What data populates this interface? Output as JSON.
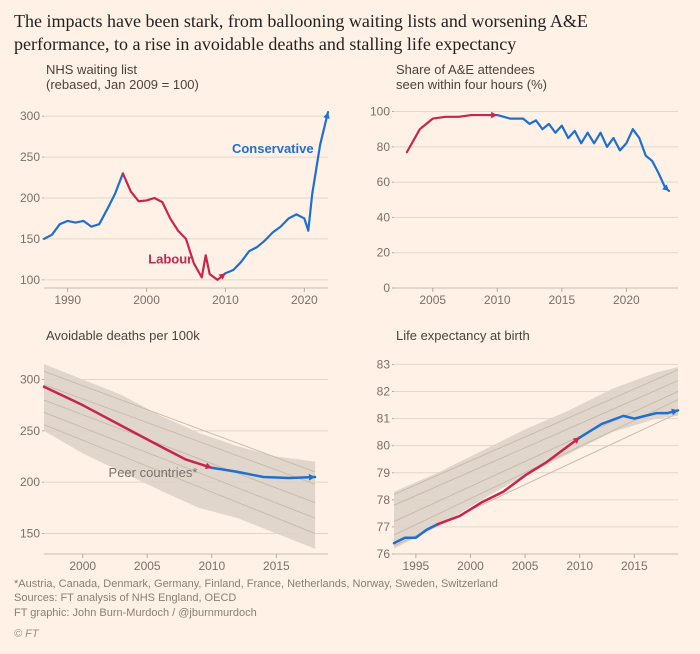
{
  "title": "The impacts have been stark, from ballooning waiting lists and worsening A&E performance, to a rise in avoidable deaths and stalling life expectancy",
  "palette": {
    "background": "#fff1e5",
    "labour": "#c7254e",
    "conservative": "#1f6fd1",
    "peers_fill": "#ded3c8",
    "grid": "#e2d7cb",
    "axis_text": "#7a7069",
    "subtitle_text": "#4a433c"
  },
  "charts": {
    "waiting_list": {
      "type": "line",
      "subtitle": "NHS waiting list\n(rebased, Jan 2009 = 100)",
      "labels": {
        "labour": "Labour",
        "conservative": "Conservative"
      },
      "xlim": [
        1987,
        2023
      ],
      "ylim": [
        90,
        310
      ],
      "yticks": [
        100,
        150,
        200,
        250,
        300
      ],
      "xticks": [
        1990,
        2000,
        2010,
        2020
      ],
      "line_width": 2.2,
      "pre_labour": {
        "color": "#1f6fd1",
        "points": [
          [
            1987,
            150
          ],
          [
            1988,
            155
          ],
          [
            1989,
            168
          ],
          [
            1990,
            172
          ],
          [
            1991,
            170
          ],
          [
            1992,
            172
          ],
          [
            1993,
            165
          ],
          [
            1994,
            168
          ],
          [
            1995,
            186
          ],
          [
            1996,
            205
          ],
          [
            1997,
            230
          ]
        ]
      },
      "labour_series": {
        "color": "#c7254e",
        "points": [
          [
            1997,
            230
          ],
          [
            1998,
            208
          ],
          [
            1999,
            196
          ],
          [
            2000,
            197
          ],
          [
            2001,
            200
          ],
          [
            2002,
            195
          ],
          [
            2003,
            175
          ],
          [
            2004,
            160
          ],
          [
            2005,
            150
          ],
          [
            2006,
            120
          ],
          [
            2007,
            103
          ],
          [
            2007.5,
            130
          ],
          [
            2008,
            107
          ],
          [
            2009,
            100
          ],
          [
            2010,
            108
          ]
        ]
      },
      "conservative_series": {
        "color": "#1f6fd1",
        "points": [
          [
            2010,
            108
          ],
          [
            2011,
            112
          ],
          [
            2012,
            122
          ],
          [
            2013,
            135
          ],
          [
            2014,
            140
          ],
          [
            2015,
            148
          ],
          [
            2016,
            158
          ],
          [
            2017,
            165
          ],
          [
            2018,
            175
          ],
          [
            2019,
            180
          ],
          [
            2020,
            175
          ],
          [
            2020.5,
            160
          ],
          [
            2021,
            205
          ],
          [
            2022,
            265
          ],
          [
            2023,
            305
          ]
        ]
      }
    },
    "ae_four_hours": {
      "type": "line",
      "subtitle": "Share of A&E attendees\nseen within four hours (%)",
      "xlim": [
        2002,
        2024
      ],
      "ylim": [
        0,
        102
      ],
      "yticks": [
        0,
        20,
        40,
        60,
        80,
        100
      ],
      "xticks": [
        2005,
        2010,
        2015,
        2020
      ],
      "line_width": 2.2,
      "labour_series": {
        "color": "#c7254e",
        "points": [
          [
            2003,
            77
          ],
          [
            2004,
            90
          ],
          [
            2005,
            96
          ],
          [
            2006,
            97
          ],
          [
            2007,
            97
          ],
          [
            2008,
            98
          ],
          [
            2009,
            98
          ],
          [
            2010,
            98
          ]
        ]
      },
      "conservative_series": {
        "color": "#1f6fd1",
        "points": [
          [
            2010,
            98
          ],
          [
            2011,
            96
          ],
          [
            2012,
            96
          ],
          [
            2012.5,
            93
          ],
          [
            2013,
            95
          ],
          [
            2013.5,
            90
          ],
          [
            2014,
            93
          ],
          [
            2014.5,
            88
          ],
          [
            2015,
            92
          ],
          [
            2015.5,
            85
          ],
          [
            2016,
            89
          ],
          [
            2016.5,
            82
          ],
          [
            2017,
            88
          ],
          [
            2017.5,
            82
          ],
          [
            2018,
            88
          ],
          [
            2018.5,
            80
          ],
          [
            2019,
            85
          ],
          [
            2019.5,
            78
          ],
          [
            2020,
            82
          ],
          [
            2020.5,
            90
          ],
          [
            2021,
            85
          ],
          [
            2021.5,
            75
          ],
          [
            2022,
            72
          ],
          [
            2022.5,
            65
          ],
          [
            2023,
            57
          ],
          [
            2023.3,
            55
          ]
        ]
      }
    },
    "avoidable_deaths": {
      "type": "line_with_band",
      "subtitle": "Avoidable deaths per 100k",
      "peer_label": "Peer countries*",
      "xlim": [
        1997,
        2019
      ],
      "ylim": [
        130,
        320
      ],
      "yticks": [
        150,
        200,
        250,
        300
      ],
      "xticks": [
        2000,
        2005,
        2010,
        2015
      ],
      "line_width": 2.5,
      "band_color": "#ded3c8",
      "band_top": [
        [
          1997,
          315
        ],
        [
          2000,
          300
        ],
        [
          2003,
          285
        ],
        [
          2006,
          265
        ],
        [
          2009,
          248
        ],
        [
          2012,
          235
        ],
        [
          2015,
          225
        ],
        [
          2018,
          220
        ]
      ],
      "band_bottom": [
        [
          1997,
          250
        ],
        [
          2000,
          228
        ],
        [
          2003,
          210
        ],
        [
          2006,
          192
        ],
        [
          2009,
          175
        ],
        [
          2012,
          165
        ],
        [
          2015,
          150
        ],
        [
          2018,
          135
        ]
      ],
      "peer_lines": [
        [
          [
            1997,
            308
          ],
          [
            2018,
            210
          ]
        ],
        [
          [
            1997,
            295
          ],
          [
            2018,
            198
          ]
        ],
        [
          [
            1997,
            280
          ],
          [
            2018,
            180
          ]
        ],
        [
          [
            1997,
            268
          ],
          [
            2018,
            165
          ]
        ],
        [
          [
            1997,
            256
          ],
          [
            2018,
            150
          ]
        ]
      ],
      "labour_series": {
        "color": "#c7254e",
        "points": [
          [
            1997,
            293
          ],
          [
            2000,
            275
          ],
          [
            2003,
            255
          ],
          [
            2006,
            235
          ],
          [
            2008,
            222
          ],
          [
            2010,
            214
          ]
        ]
      },
      "conservative_series": {
        "color": "#1f6fd1",
        "points": [
          [
            2010,
            214
          ],
          [
            2012,
            210
          ],
          [
            2014,
            205
          ],
          [
            2016,
            204
          ],
          [
            2018,
            205
          ]
        ]
      }
    },
    "life_expectancy": {
      "type": "line_with_band",
      "subtitle": "Life expectancy at birth",
      "xlim": [
        1993,
        2019
      ],
      "ylim": [
        76,
        83.2
      ],
      "yticks": [
        76,
        77,
        78,
        79,
        80,
        81,
        82,
        83
      ],
      "xticks": [
        1995,
        2000,
        2005,
        2010,
        2015
      ],
      "line_width": 2.5,
      "band_color": "#ded3c8",
      "band_top": [
        [
          1993,
          78.3
        ],
        [
          1997,
          79.0
        ],
        [
          2001,
          79.8
        ],
        [
          2005,
          80.6
        ],
        [
          2009,
          81.3
        ],
        [
          2013,
          82.1
        ],
        [
          2017,
          82.7
        ],
        [
          2019,
          82.9
        ]
      ],
      "band_bottom": [
        [
          1993,
          76.2
        ],
        [
          1997,
          77.0
        ],
        [
          2001,
          78.0
        ],
        [
          2005,
          78.9
        ],
        [
          2009,
          79.7
        ],
        [
          2013,
          80.5
        ],
        [
          2017,
          81.0
        ],
        [
          2019,
          81.1
        ]
      ],
      "peer_lines": [
        [
          [
            1993,
            78.2
          ],
          [
            2019,
            82.8
          ]
        ],
        [
          [
            1993,
            77.8
          ],
          [
            2019,
            82.4
          ]
        ],
        [
          [
            1993,
            77.2
          ],
          [
            2019,
            82.0
          ]
        ],
        [
          [
            1993,
            76.7
          ],
          [
            2019,
            81.7
          ]
        ],
        [
          [
            1993,
            76.3
          ],
          [
            2019,
            81.2
          ]
        ]
      ],
      "pre_labour": {
        "color": "#1f6fd1",
        "points": [
          [
            1993,
            76.4
          ],
          [
            1994,
            76.6
          ],
          [
            1995,
            76.6
          ],
          [
            1996,
            76.9
          ],
          [
            1997,
            77.1
          ]
        ]
      },
      "labour_series": {
        "color": "#c7254e",
        "points": [
          [
            1997,
            77.1
          ],
          [
            1999,
            77.4
          ],
          [
            2001,
            77.9
          ],
          [
            2003,
            78.3
          ],
          [
            2005,
            78.9
          ],
          [
            2007,
            79.4
          ],
          [
            2009,
            80.0
          ],
          [
            2010,
            80.3
          ]
        ]
      },
      "conservative_series": {
        "color": "#1f6fd1",
        "points": [
          [
            2010,
            80.3
          ],
          [
            2012,
            80.8
          ],
          [
            2014,
            81.1
          ],
          [
            2015,
            81.0
          ],
          [
            2016,
            81.1
          ],
          [
            2017,
            81.2
          ],
          [
            2018,
            81.2
          ],
          [
            2019,
            81.3
          ]
        ]
      }
    }
  },
  "footnotes": {
    "peers": "*Austria, Canada, Denmark, Germany, Finland, France, Netherlands, Norway, Sweden, Switzerland",
    "sources": "Sources: FT analysis of NHS England, OECD",
    "credit": "FT graphic: John Burn-Murdoch / @jburnmurdoch",
    "copyright": "© FT"
  }
}
